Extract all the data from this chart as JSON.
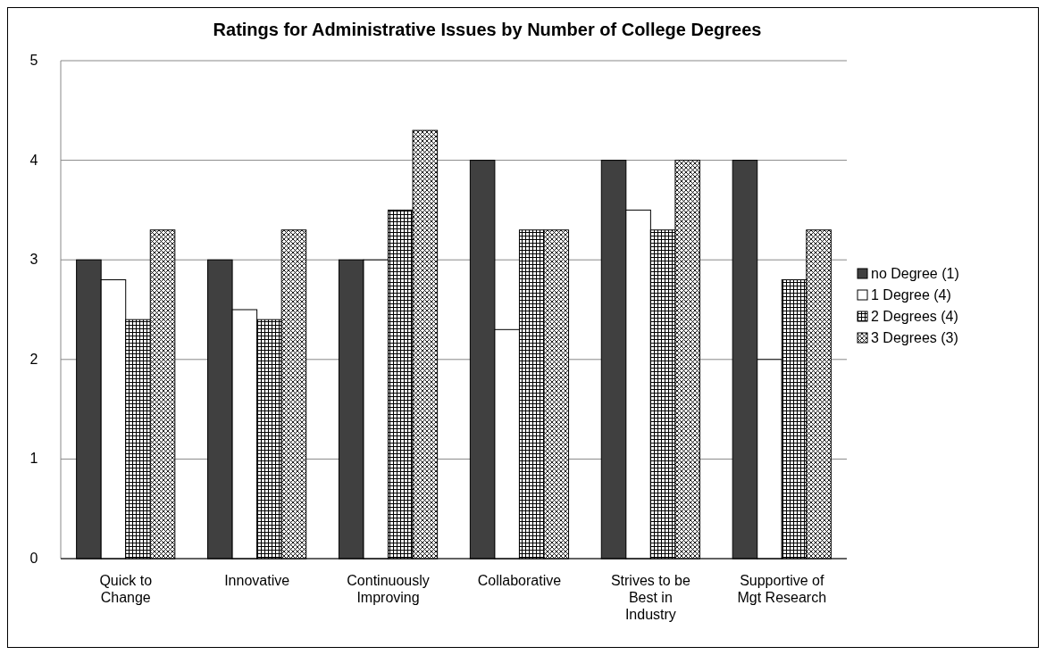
{
  "chart_data": {
    "type": "bar",
    "title": "Ratings for Administrative Issues by Number of College Degrees",
    "categories": [
      "Quick to Change",
      "Innovative",
      "Continuously Improving",
      "Collaborative",
      "Strives to be Best in Industry",
      "Supportive of Mgt Research"
    ],
    "series": [
      {
        "name": "no Degree (1)",
        "color": "#404040",
        "values": [
          3,
          3,
          3,
          4,
          4,
          4
        ]
      },
      {
        "name": "1 Degree (4)",
        "color": "#ffffff",
        "values": [
          2.8,
          2.5,
          3,
          2.3,
          3.5,
          2
        ]
      },
      {
        "name": "2 Degrees (4)",
        "color": "#000000",
        "values": [
          2.4,
          2.4,
          3.5,
          3.3,
          3.3,
          2.8
        ]
      },
      {
        "name": "3 Degrees (3)",
        "color": "#000000",
        "values": [
          3.3,
          3.3,
          4.3,
          3.3,
          4,
          3.3
        ]
      }
    ],
    "ylim": [
      0,
      5
    ],
    "yticks": [
      0,
      1,
      2,
      3,
      4,
      5
    ],
    "grid": "y",
    "legend": "right"
  }
}
